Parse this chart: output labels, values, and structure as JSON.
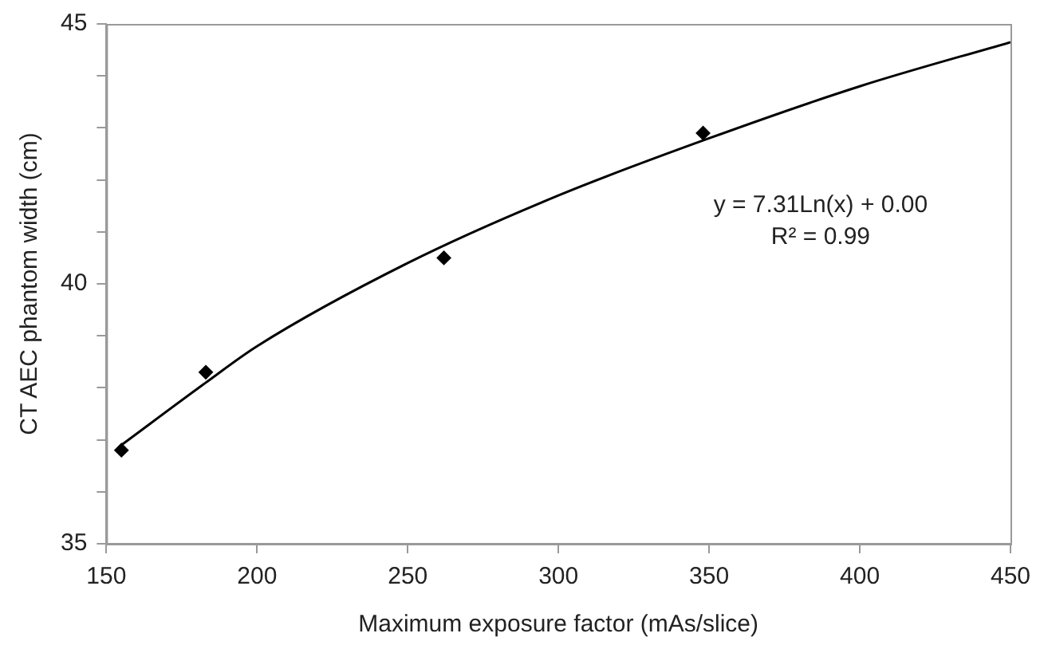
{
  "chart_data": {
    "type": "scatter",
    "xlabel": "Maximum exposure factor (mAs/slice)",
    "ylabel": "CT AEC phantom width (cm)",
    "series": [
      {
        "type": "scatter",
        "color": "#000000",
        "marker": "diamond",
        "x": [
          155,
          183,
          262,
          348
        ],
        "values": [
          36.8,
          38.3,
          40.5,
          42.9
        ]
      },
      {
        "type": "line",
        "color": "#000000",
        "marker": "none",
        "x": [
          155,
          183,
          200,
          250,
          300,
          350,
          400,
          450
        ],
        "values": [
          36.9,
          38.1,
          38.8,
          40.4,
          41.7,
          42.8,
          43.8,
          44.65
        ]
      }
    ],
    "annotations": [
      "y = 7.31Ln(x) + 0.00",
      "R² = 0.99"
    ],
    "xlim": [
      150,
      450
    ],
    "xticks": [
      150,
      200,
      250,
      300,
      350,
      400,
      450
    ],
    "ylim": [
      35,
      45
    ],
    "yticks": [
      35,
      {
        "value": 36,
        "label": null
      },
      {
        "value": 37,
        "label": null
      },
      {
        "value": 38,
        "label": null
      },
      {
        "value": 39,
        "label": null
      },
      40,
      {
        "value": 41,
        "label": null
      },
      {
        "value": 42,
        "label": null
      },
      {
        "value": 43,
        "label": null
      },
      {
        "value": 44,
        "label": null
      },
      45
    ],
    "grid": false,
    "legend": false
  }
}
